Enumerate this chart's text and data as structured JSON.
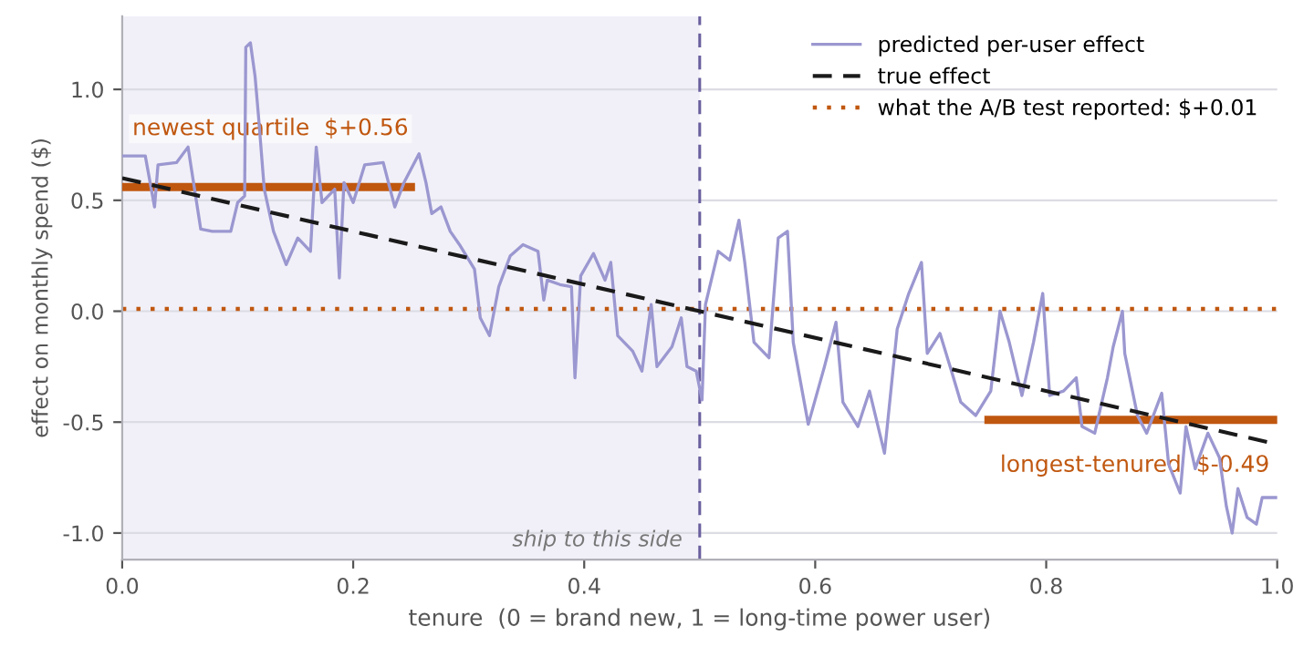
{
  "chart_data": {
    "type": "line",
    "xlabel": "tenure  (0 = brand new, 1 = long-time power user)",
    "ylabel": "effect on monthly spend ($)",
    "xlim": [
      0,
      1
    ],
    "ylim": [
      -1.12,
      1.33
    ],
    "xticks": [
      {
        "value": 0,
        "label": "0.0"
      },
      0.2,
      0.4,
      0.6,
      0.8,
      {
        "value": 1,
        "label": "1.0"
      }
    ],
    "yticks": [
      {
        "value": -1,
        "label": "-1.0"
      },
      -0.5,
      {
        "value": 0,
        "label": "0.0"
      },
      0.5,
      {
        "value": 1,
        "label": "1.0"
      }
    ],
    "grid": "y",
    "legend": "top right",
    "series": [
      {
        "name": "predicted per-user effect",
        "color": "#9b97d0",
        "line_style": "solid",
        "x": [
          0,
          0.02,
          0.028,
          0.031,
          0.047,
          0.057,
          0.068,
          0.078,
          0.094,
          0.1,
          0.106,
          0.107,
          0.111,
          0.115,
          0.118,
          0.123,
          0.131,
          0.142,
          0.152,
          0.163,
          0.168,
          0.173,
          0.184,
          0.188,
          0.192,
          0.2,
          0.21,
          0.226,
          0.236,
          0.244,
          0.257,
          0.263,
          0.268,
          0.276,
          0.284,
          0.292,
          0.305,
          0.31,
          0.318,
          0.326,
          0.336,
          0.347,
          0.36,
          0.365,
          0.368,
          0.379,
          0.389,
          0.392,
          0.397,
          0.408,
          0.418,
          0.423,
          0.429,
          0.442,
          0.45,
          0.458,
          0.463,
          0.476,
          0.484,
          0.489,
          0.497,
          0.502,
          0.505,
          0.516,
          0.526,
          0.534,
          0.539,
          0.547,
          0.56,
          0.568,
          0.576,
          0.581,
          0.594,
          0.608,
          0.618,
          0.624,
          0.637,
          0.647,
          0.66,
          0.671,
          0.681,
          0.692,
          0.697,
          0.708,
          0.718,
          0.726,
          0.739,
          0.752,
          0.76,
          0.768,
          0.779,
          0.789,
          0.797,
          0.803,
          0.815,
          0.826,
          0.831,
          0.842,
          0.853,
          0.858,
          0.866,
          0.868,
          0.879,
          0.887,
          0.9,
          0.906,
          0.916,
          0.921,
          0.929,
          0.94,
          0.95,
          0.956,
          0.961,
          0.966,
          0.974,
          0.982,
          0.987,
          1.0
        ],
        "values": [
          0.7,
          0.7,
          0.47,
          0.66,
          0.67,
          0.74,
          0.37,
          0.36,
          0.36,
          0.49,
          0.52,
          1.19,
          1.21,
          1.06,
          0.88,
          0.55,
          0.36,
          0.21,
          0.33,
          0.27,
          0.74,
          0.49,
          0.55,
          0.15,
          0.58,
          0.49,
          0.66,
          0.67,
          0.47,
          0.58,
          0.71,
          0.58,
          0.44,
          0.47,
          0.36,
          0.3,
          0.19,
          -0.03,
          -0.11,
          0.11,
          0.25,
          0.3,
          0.27,
          0.05,
          0.14,
          0.12,
          0.11,
          -0.3,
          0.16,
          0.26,
          0.14,
          0.22,
          -0.11,
          -0.18,
          -0.27,
          0.03,
          -0.25,
          -0.16,
          -0.03,
          -0.25,
          -0.27,
          -0.4,
          0.03,
          0.27,
          0.23,
          0.41,
          0.22,
          -0.14,
          -0.21,
          0.33,
          0.36,
          -0.14,
          -0.51,
          -0.25,
          -0.05,
          -0.41,
          -0.52,
          -0.36,
          -0.64,
          -0.08,
          0.08,
          0.22,
          -0.19,
          -0.1,
          -0.27,
          -0.41,
          -0.47,
          -0.36,
          0.0,
          -0.14,
          -0.38,
          -0.14,
          0.08,
          -0.38,
          -0.36,
          -0.3,
          -0.52,
          -0.55,
          -0.3,
          -0.16,
          0.0,
          -0.19,
          -0.47,
          -0.55,
          -0.37,
          -0.69,
          -0.82,
          -0.52,
          -0.71,
          -0.55,
          -0.66,
          -0.88,
          -1.0,
          -0.8,
          -0.93,
          -0.96,
          -0.84,
          -0.84
        ]
      },
      {
        "name": "true effect",
        "color": "#1a1a1a",
        "line_style": "dashed",
        "x": [
          0,
          1
        ],
        "values": [
          0.6,
          -0.6
        ]
      },
      {
        "color": "#c0570f",
        "line_style": "solid",
        "x": [
          0,
          0.25
        ],
        "values": [
          0.56,
          0.56
        ]
      },
      {
        "color": "#c0570f",
        "line_style": "solid",
        "x": [
          0.75,
          1.0
        ],
        "values": [
          -0.49,
          -0.49
        ]
      }
    ],
    "ref_lines": [
      {
        "axis": "y",
        "value": 0.01,
        "label": "what the A/B test reported: $+0.01",
        "color": "#c0570f",
        "line_style": "dotted"
      },
      {
        "axis": "x",
        "value": 0.5,
        "color": "#6a5f9e",
        "line_style": "dashed"
      }
    ],
    "bands": [
      {
        "axis": "x",
        "from": 0,
        "to": 0.5,
        "color": "#f1f0f8"
      }
    ],
    "annotations": [
      {
        "text": "newest quartile  $+0.56",
        "x": 0.0,
        "y": 0.56
      },
      {
        "text": "longest-tenured  $-0.49",
        "x": 1.0,
        "y": -0.49
      },
      "ship to this side"
    ]
  }
}
